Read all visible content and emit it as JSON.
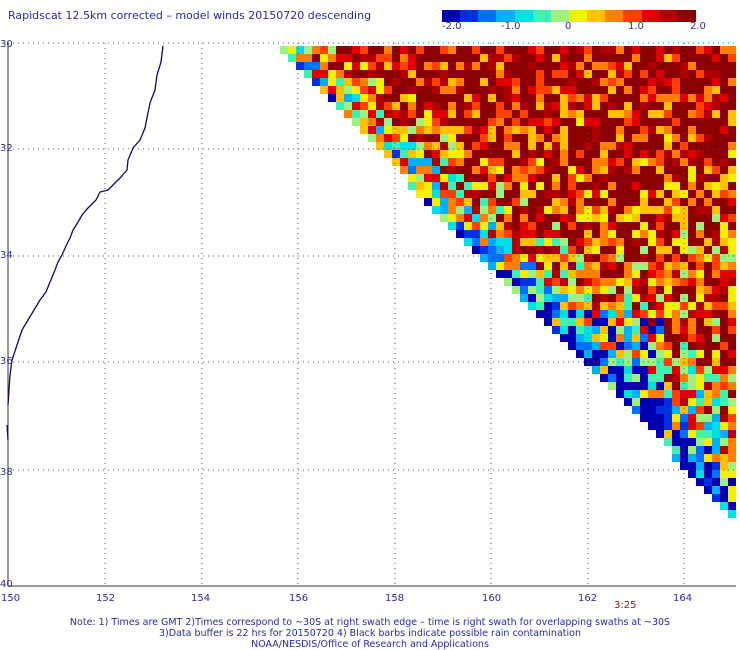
{
  "title": "Rapidscat 12.5km corrected – model winds 20150720 descending",
  "colorbar": {
    "labels": [
      "-2.0",
      "-1.0",
      "0",
      "1.0",
      "2.0"
    ],
    "colors": [
      "#0000b0",
      "#0030e0",
      "#0070ff",
      "#00b0ff",
      "#00e0e0",
      "#40f0b0",
      "#a0f080",
      "#f0f000",
      "#ffc000",
      "#ff8000",
      "#ff4000",
      "#e00000",
      "#b00000",
      "#8b0000"
    ]
  },
  "map": {
    "lat_labels": [
      "30",
      "32",
      "34",
      "36",
      "38",
      "40"
    ],
    "lon_labels": [
      "150",
      "152",
      "154",
      "156",
      "158",
      "160",
      "162",
      "164"
    ],
    "lat_range": [
      -40,
      -30
    ],
    "lon_range": [
      150,
      165
    ],
    "grid": "dotted",
    "coastline": "east coast of Australia",
    "overlay": "wind speed difference swath (corrected minus model), mostly positive (red) in north and east"
  },
  "time_label": "3:25",
  "notes": [
    "Note: 1) Times are GMT  2)Times correspond to ~30S at right swath edge – time is right swath for overlapping swaths at ~30S",
    "3)Data buffer is 22 hrs for 20150720  4) Black barbs indicate possible rain contamination",
    "NOAA/NESDIS/Office of Research and Applications"
  ]
}
